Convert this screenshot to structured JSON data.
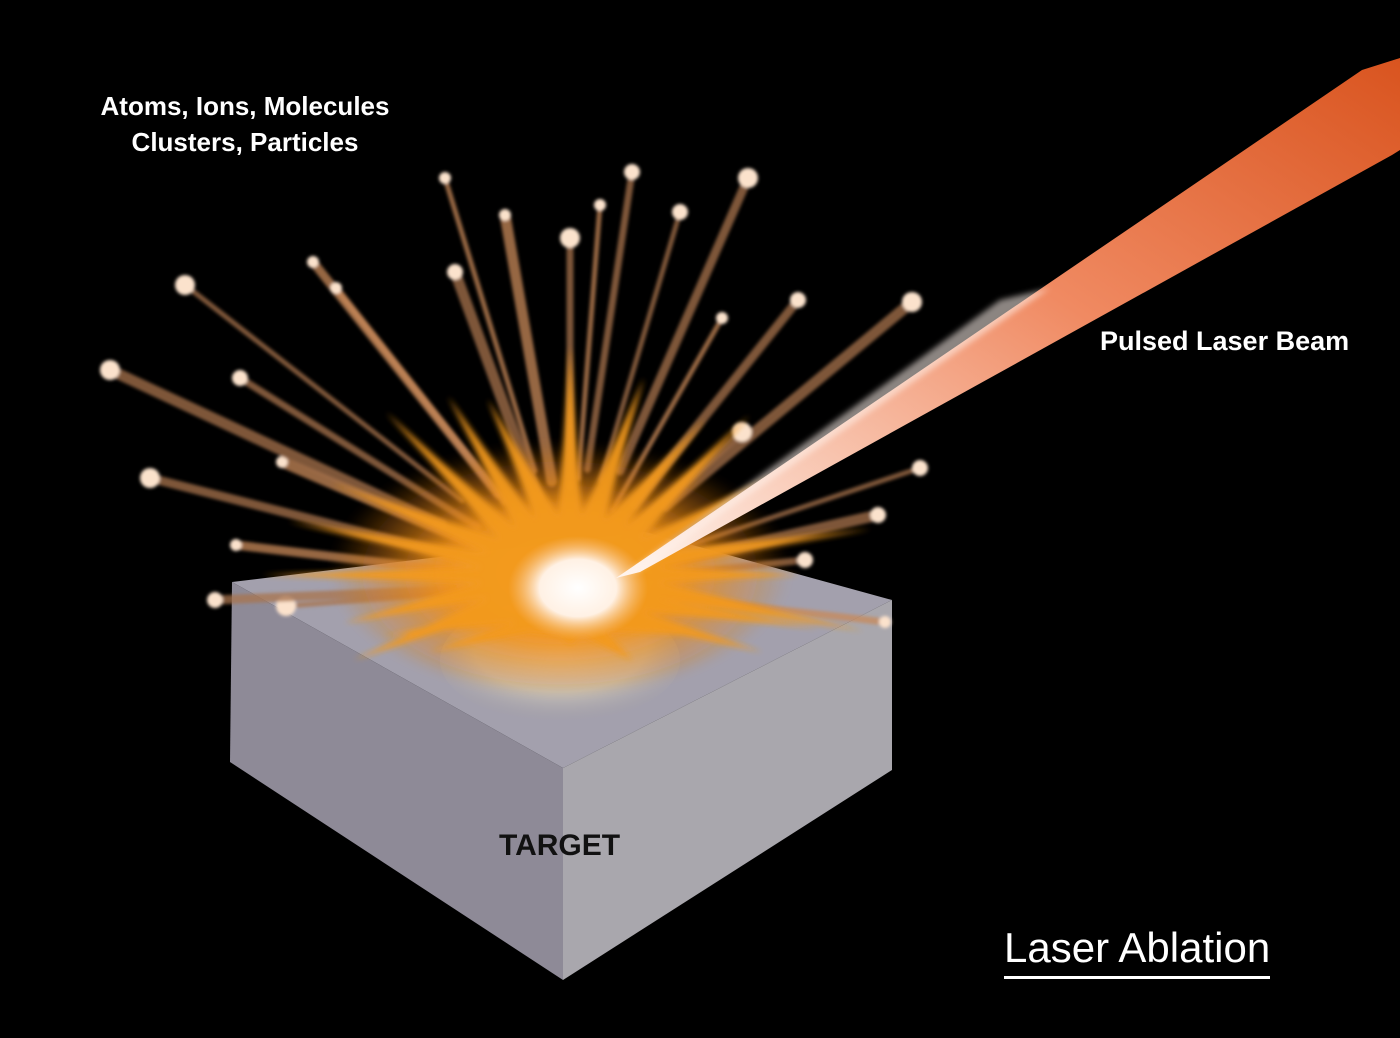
{
  "labels": {
    "ejecta_line1": "Atoms, Ions, Molecules",
    "ejecta_line2": "Clusters, Particles",
    "beam": "Pulsed Laser Beam",
    "target": "TARGET",
    "title": "Laser Ablation"
  },
  "colors": {
    "background": "#000000",
    "beam_outer": "#e0622a",
    "beam_inner": "#ffd8c8",
    "plume_orange": "#f29a1e",
    "plume_core": "#fff4ea",
    "target_top": "#a3a0ad",
    "target_left": "#8e8a96",
    "target_right": "#a7a5ab",
    "text": "#ffffff",
    "target_text": "#111111"
  }
}
